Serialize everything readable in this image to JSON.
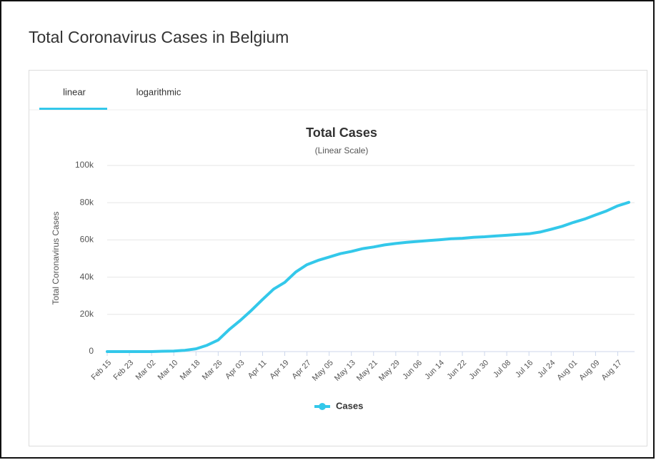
{
  "page": {
    "title": "Total Coronavirus Cases in Belgium",
    "tabs": [
      "linear",
      "logarithmic"
    ]
  },
  "chart_data": {
    "type": "line",
    "title": "Total Cases",
    "subtitle": "(Linear Scale)",
    "y_label": "Total Coronavirus Cases",
    "categories": [
      "Feb 15",
      null,
      "Feb 23",
      null,
      "Mar 02",
      null,
      "Mar 10",
      null,
      "Mar 18",
      null,
      "Mar 26",
      null,
      "Apr 03",
      null,
      "Apr 11",
      null,
      "Apr 19",
      null,
      "Apr 27",
      null,
      "May 05",
      null,
      "May 13",
      null,
      "May 21",
      null,
      "May 29",
      null,
      "Jun 06",
      null,
      "Jun 14",
      null,
      "Jun 22",
      null,
      "Jun 30",
      null,
      "Jul 08",
      null,
      "Jul 16",
      null,
      "Jul 24",
      null,
      "Aug 01",
      null,
      "Aug 09",
      null,
      "Aug 17",
      null
    ],
    "series": [
      {
        "name": "Cases",
        "color": "#33c8ea",
        "values": [
          0,
          0,
          0,
          0,
          0,
          200,
          300,
          700,
          1500,
          3400,
          6200,
          11900,
          16800,
          22200,
          28000,
          33600,
          37200,
          42800,
          46700,
          49000,
          50800,
          52600,
          53800,
          55300,
          56200,
          57300,
          58100,
          58700,
          59200,
          59700,
          60100,
          60600,
          60900,
          61400,
          61700,
          62100,
          62500,
          62900,
          63300,
          64200,
          65700,
          67300,
          69400,
          71200,
          73400,
          75600,
          78300,
          80200
        ]
      }
    ],
    "ylim": [
      0,
      100000
    ],
    "yticks": [
      0,
      {
        "value": 20000,
        "label": "20k"
      },
      {
        "value": 40000,
        "label": "40k"
      },
      {
        "value": 60000,
        "label": "60k"
      },
      {
        "value": 80000,
        "label": "80k"
      },
      {
        "value": 100000,
        "label": "100k"
      }
    ],
    "grid": true,
    "legend": "bottom"
  }
}
